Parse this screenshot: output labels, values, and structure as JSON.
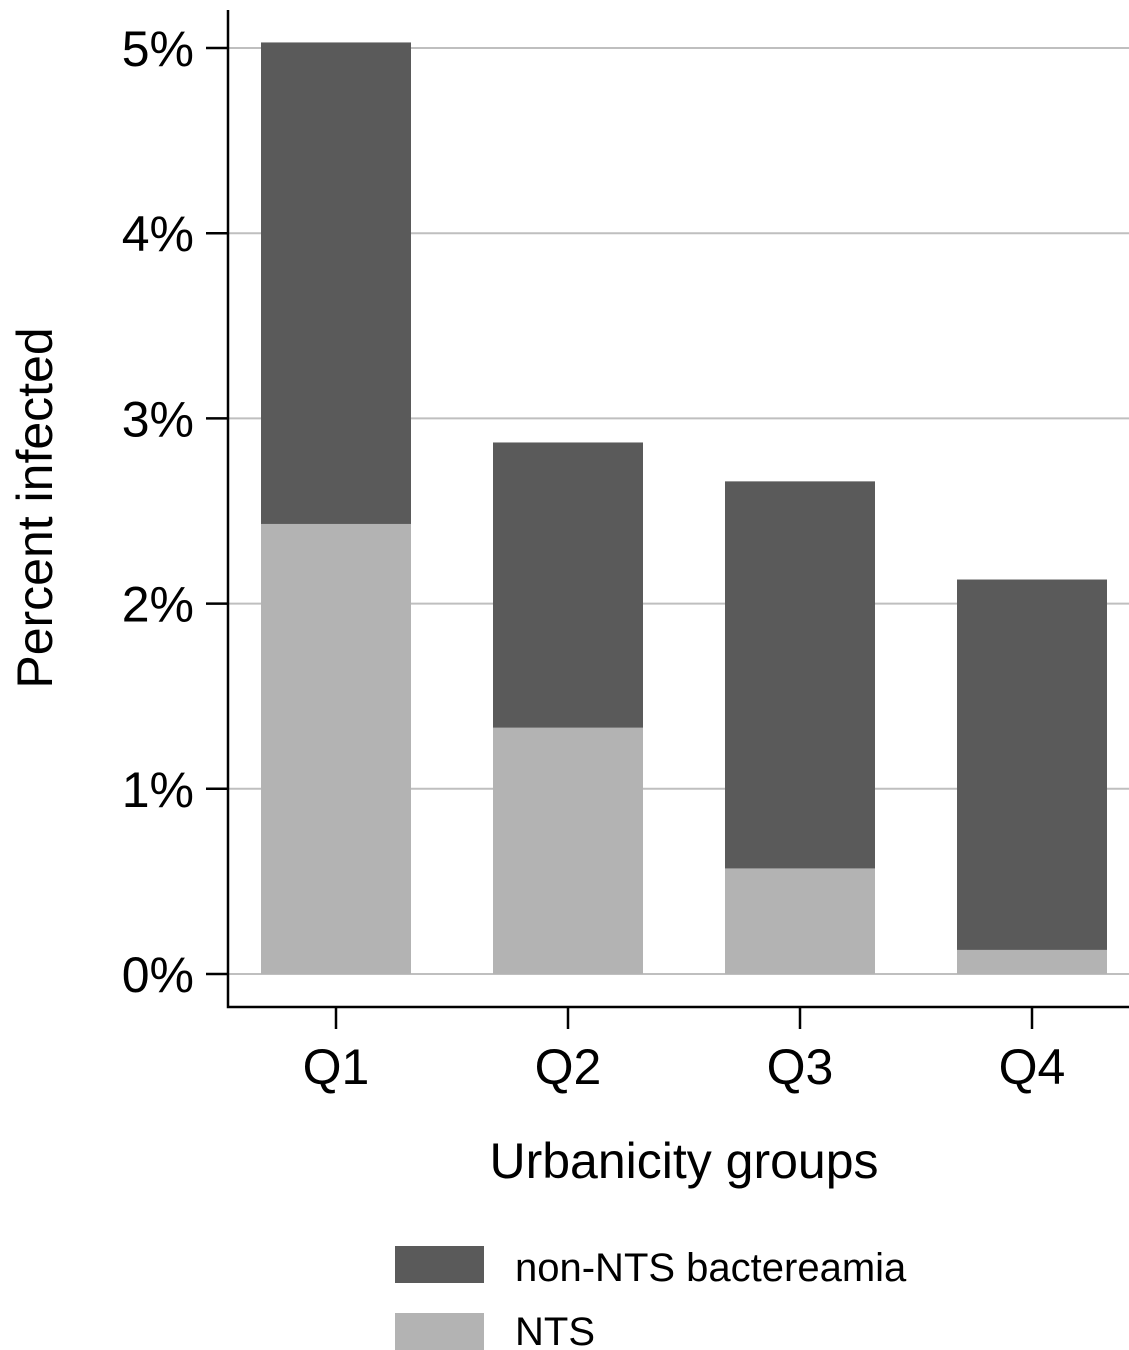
{
  "chart_data": {
    "type": "bar",
    "stacked": true,
    "categories": [
      "Q1",
      "Q2",
      "Q3",
      "Q4"
    ],
    "series": [
      {
        "name": "NTS",
        "values": [
          2.43,
          1.33,
          0.57,
          0.13
        ],
        "color": "#b3b3b3"
      },
      {
        "name": "non-NTS bactereamia",
        "values": [
          2.6,
          1.54,
          2.09,
          2.0
        ],
        "color": "#5a5a5a"
      }
    ],
    "xlabel": "Urbanicity groups",
    "ylabel": "Percent infected",
    "ylim": [
      0,
      5
    ],
    "yticks": [
      "0%",
      "1%",
      "2%",
      "3%",
      "4%",
      "5%"
    ],
    "grid": true,
    "grid_color": "#bfbfbf",
    "legend": {
      "placement": "bottom",
      "entries": [
        "non-NTS bactereamia",
        "NTS"
      ]
    }
  }
}
